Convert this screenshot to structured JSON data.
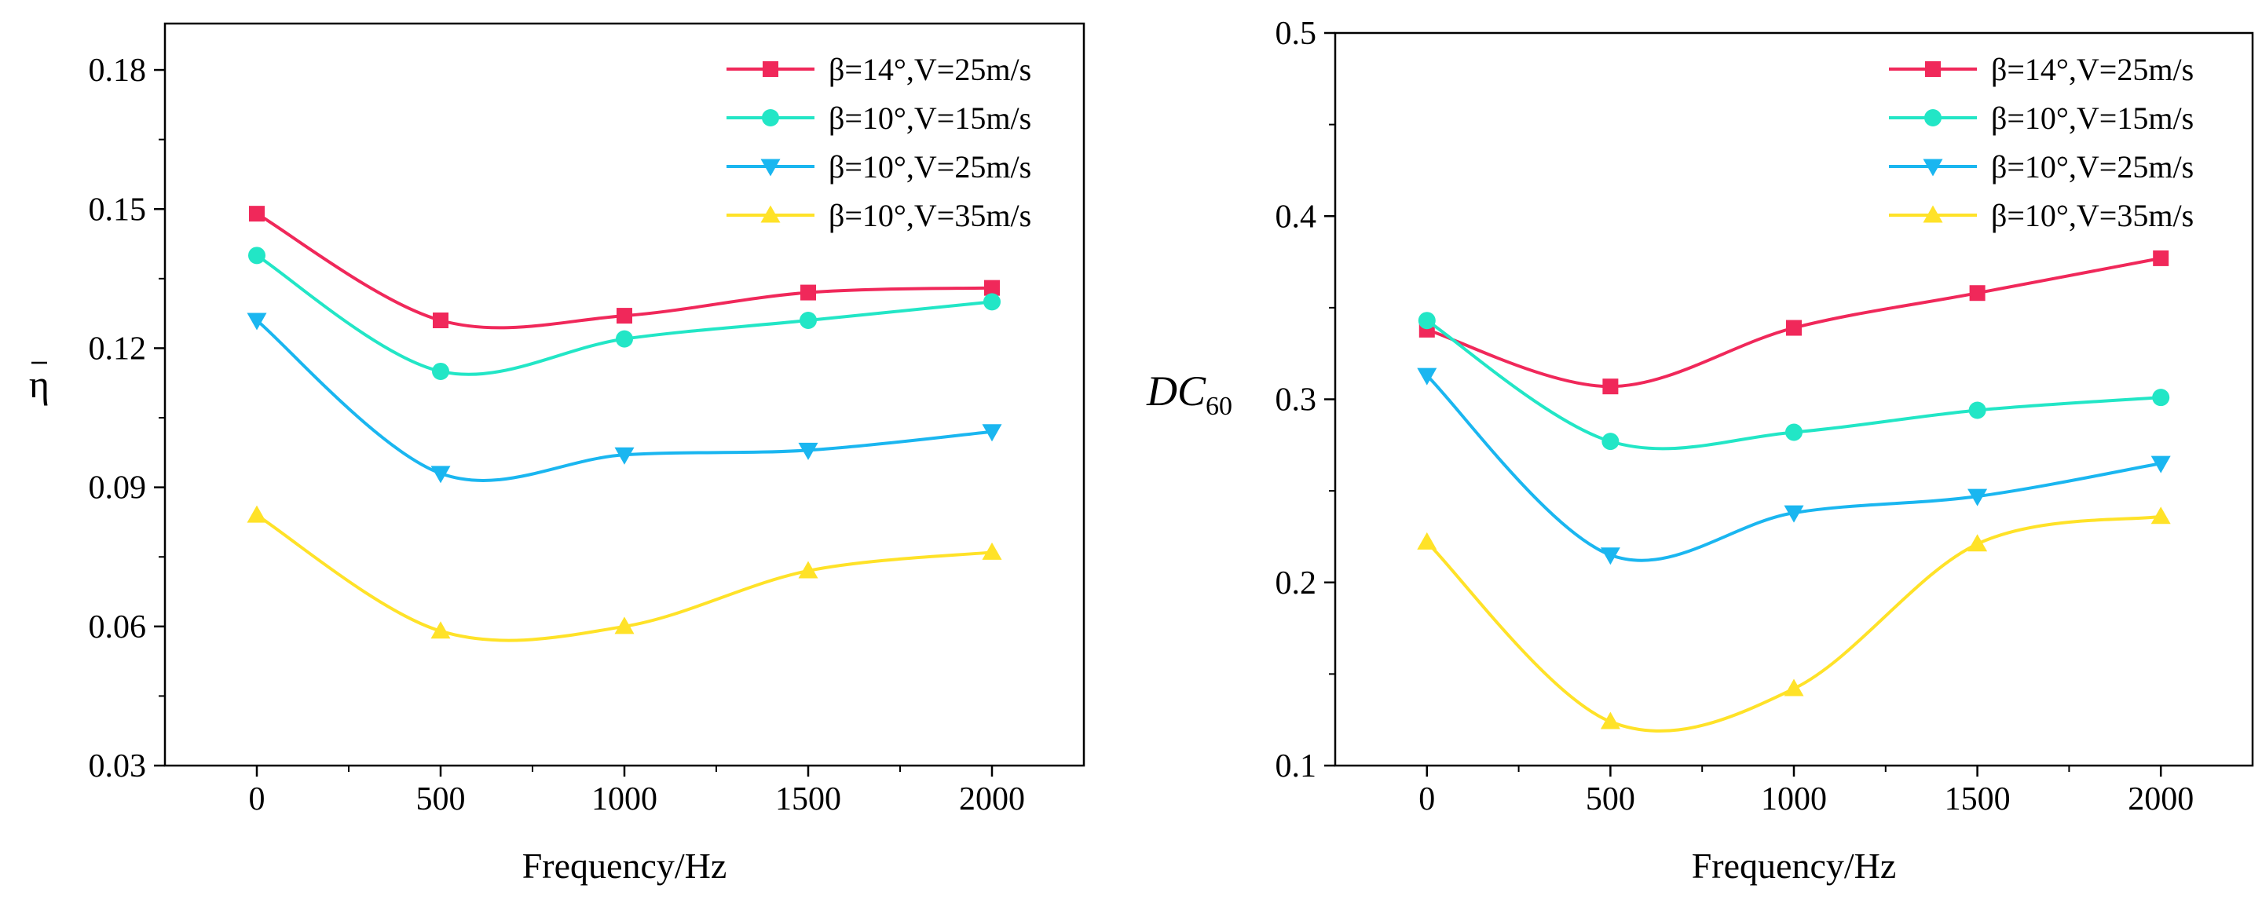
{
  "chart_data": [
    {
      "type": "line",
      "title": "",
      "xlabel": "Frequency/Hz",
      "ylabel": "η",
      "ylabel_overbar": true,
      "x": [
        0,
        500,
        1000,
        1500,
        2000
      ],
      "xlim": [
        -250,
        2250
      ],
      "ylim": [
        0.03,
        0.19
      ],
      "xticks": [
        0,
        500,
        1000,
        1500,
        2000
      ],
      "xtick_labels": [
        "0",
        "500",
        "1000",
        "1500",
        "2000"
      ],
      "yticks": [
        0.03,
        0.06,
        0.09,
        0.12,
        0.15,
        0.18
      ],
      "ytick_labels": [
        "0.03",
        "0.06",
        "0.09",
        "0.12",
        "0.15",
        "0.18"
      ],
      "grid": false,
      "legend_position": "top-right",
      "series": [
        {
          "name": "β=14°,V=25m/s",
          "color": "#f0285a",
          "marker": "square",
          "values": [
            0.149,
            0.126,
            0.127,
            0.132,
            0.133
          ]
        },
        {
          "name": "β=10°,V=15m/s",
          "color": "#22e6c6",
          "marker": "circle",
          "values": [
            0.14,
            0.115,
            0.122,
            0.126,
            0.13
          ]
        },
        {
          "name": "β=10°,V=25m/s",
          "color": "#1ab6f0",
          "marker": "triangle-down",
          "values": [
            0.126,
            0.093,
            0.097,
            0.098,
            0.102
          ]
        },
        {
          "name": "β=10°,V=35m/s",
          "color": "#ffe228",
          "marker": "triangle-up",
          "values": [
            0.084,
            0.059,
            0.06,
            0.072,
            0.076
          ]
        }
      ]
    },
    {
      "type": "line",
      "title": "",
      "xlabel": "Frequency/Hz",
      "ylabel": "DC",
      "ylabel_sub": "60",
      "x": [
        0,
        500,
        1000,
        1500,
        2000
      ],
      "xlim": [
        -250,
        2250
      ],
      "ylim": [
        0.1,
        0.5
      ],
      "xticks": [
        0,
        500,
        1000,
        1500,
        2000
      ],
      "xtick_labels": [
        "0",
        "500",
        "1000",
        "1500",
        "2000"
      ],
      "yticks": [
        0.1,
        0.2,
        0.3,
        0.4,
        0.5
      ],
      "ytick_labels": [
        "0.1",
        "0.2",
        "0.3",
        "0.4",
        "0.5"
      ],
      "grid": false,
      "legend_position": "top-right",
      "series": [
        {
          "name": "β=14°,V=25m/s",
          "color": "#f0285a",
          "marker": "square",
          "values": [
            0.338,
            0.307,
            0.339,
            0.358,
            0.377
          ]
        },
        {
          "name": "β=10°,V=15m/s",
          "color": "#22e6c6",
          "marker": "circle",
          "values": [
            0.343,
            0.277,
            0.282,
            0.294,
            0.301
          ]
        },
        {
          "name": "β=10°,V=25m/s",
          "color": "#1ab6f0",
          "marker": "triangle-down",
          "values": [
            0.313,
            0.215,
            0.238,
            0.247,
            0.265
          ]
        },
        {
          "name": "β=10°,V=35m/s",
          "color": "#ffe228",
          "marker": "triangle-up",
          "values": [
            0.222,
            0.124,
            0.142,
            0.221,
            0.236
          ]
        }
      ]
    }
  ]
}
